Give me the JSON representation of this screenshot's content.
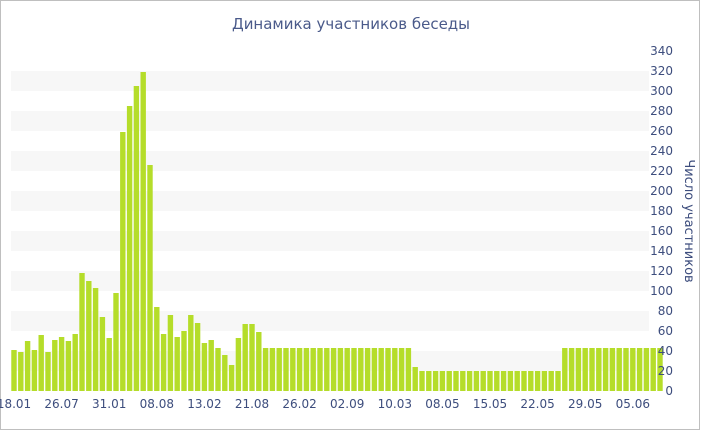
{
  "chart_data": {
    "type": "bar",
    "title": "Динамика участников беседы",
    "ylabel": "Число участников",
    "xlabel": "",
    "ylim": [
      0,
      340
    ],
    "y_ticks": [
      0,
      20,
      40,
      60,
      80,
      100,
      120,
      140,
      160,
      180,
      200,
      220,
      240,
      260,
      280,
      300,
      320,
      340
    ],
    "y_axis_side": "right",
    "grid": "alternating horizontal bands",
    "x_tick_labels": [
      {
        "index": 0,
        "label": "18.01"
      },
      {
        "index": 7,
        "label": "26.07"
      },
      {
        "index": 14,
        "label": "31.01"
      },
      {
        "index": 21,
        "label": "08.08"
      },
      {
        "index": 28,
        "label": "13.02"
      },
      {
        "index": 35,
        "label": "21.08"
      },
      {
        "index": 42,
        "label": "26.02"
      },
      {
        "index": 49,
        "label": "02.09"
      },
      {
        "index": 56,
        "label": "10.03"
      },
      {
        "index": 63,
        "label": "08.05"
      },
      {
        "index": 70,
        "label": "15.05"
      },
      {
        "index": 77,
        "label": "22.05"
      },
      {
        "index": 84,
        "label": "29.05"
      },
      {
        "index": 91,
        "label": "05.06"
      }
    ],
    "values": [
      41,
      39,
      50,
      41,
      56,
      39,
      51,
      54,
      50,
      57,
      118,
      110,
      103,
      74,
      53,
      98,
      259,
      285,
      305,
      319,
      226,
      84,
      57,
      76,
      54,
      60,
      76,
      68,
      48,
      51,
      43,
      36,
      26,
      53,
      67,
      67,
      59,
      43,
      43,
      43,
      43,
      43,
      43,
      43,
      43,
      43,
      43,
      43,
      43,
      43,
      43,
      43,
      43,
      43,
      43,
      43,
      43,
      43,
      43,
      24,
      20,
      20,
      20,
      20,
      20,
      20,
      20,
      20,
      20,
      20,
      20,
      20,
      20,
      20,
      20,
      20,
      20,
      20,
      20,
      20,
      20,
      43,
      43,
      43,
      43,
      43,
      43,
      43,
      43,
      43,
      43,
      43,
      43,
      43,
      43,
      43
    ],
    "colors": {
      "bar": "#b5dd2a",
      "band": "#f7f7f7",
      "text": "#3d4d7d",
      "title": "#4a5a8a"
    }
  }
}
